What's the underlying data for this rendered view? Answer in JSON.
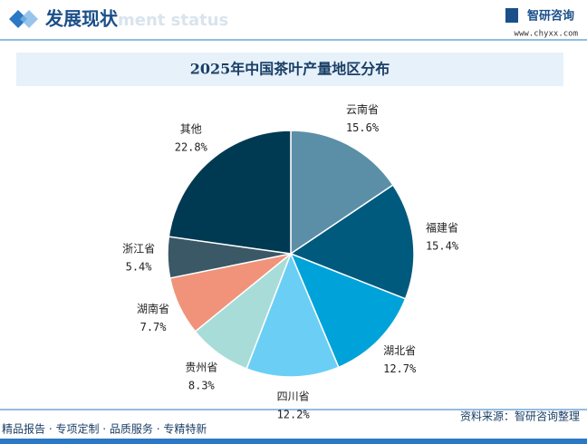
{
  "header": {
    "title": "发展现状",
    "watermark": "ment status",
    "logo": "智研咨询",
    "url": "www.chyxx.com"
  },
  "footer": {
    "source": "资料来源：智研咨询整理",
    "slogan": "精品报告 · 专项定制 · 品质服务 · 专精特新"
  },
  "chart_data": {
    "type": "pie",
    "title": "2025年中国茶叶产量地区分布",
    "categories": [
      "云南省",
      "福建省",
      "湖北省",
      "四川省",
      "贵州省",
      "湖南省",
      "浙江省",
      "其他"
    ],
    "values": [
      15.6,
      15.4,
      12.7,
      12.2,
      8.3,
      7.7,
      5.4,
      22.8
    ],
    "value_labels": [
      "15.6%",
      "15.4%",
      "12.7%",
      "12.2%",
      "8.3%",
      "7.7%",
      "5.4%",
      "22.8%"
    ],
    "colors": [
      "#5b8fa8",
      "#005a7e",
      "#00a3d9",
      "#6bcff5",
      "#a8dcd9",
      "#f0937a",
      "#3a5866",
      "#003a52"
    ]
  }
}
